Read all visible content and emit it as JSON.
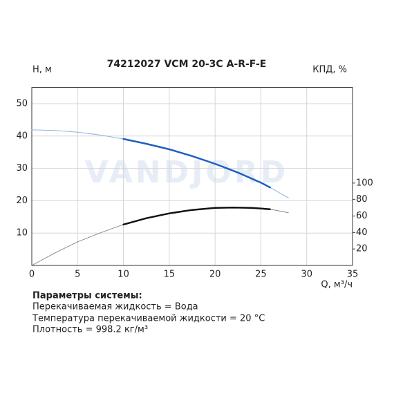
{
  "chart_data": {
    "type": "line",
    "title": "74212027 VCM 20-3C A-R-F-E",
    "y_label": "Н, м",
    "y2_label": "КПД, %",
    "x_label": "Q, м³/ч",
    "watermark": "VANDJORD",
    "xlim": [
      0,
      35
    ],
    "xticks": [
      0,
      5,
      10,
      15,
      20,
      25,
      30,
      35
    ],
    "ylim": [
      0,
      55
    ],
    "yticks": [
      10,
      20,
      30,
      40,
      50
    ],
    "y2lim": [
      0,
      216
    ],
    "y2ticks": [
      20,
      40,
      60,
      80,
      100
    ],
    "grid": true,
    "series": [
      {
        "color": "#8fb3dd",
        "line_width": 1,
        "x": [
          0,
          2.5,
          5,
          7.5,
          10,
          12.5,
          15,
          17.5,
          20,
          22.5,
          25,
          26,
          28
        ],
        "values": [
          41.9,
          41.7,
          41.2,
          40.3,
          39.1,
          37.6,
          35.9,
          33.8,
          31.4,
          28.7,
          25.6,
          24.1,
          20.9
        ]
      },
      {
        "color": "#1f5fbf",
        "line_width": 2.5,
        "x": [
          10,
          12.5,
          15,
          17.5,
          20,
          22.5,
          25,
          26
        ],
        "values": [
          39.1,
          37.6,
          35.9,
          33.8,
          31.4,
          28.7,
          25.6,
          24.1
        ]
      },
      {
        "color": "#777777",
        "line_width": 0.8,
        "axis": "y2",
        "x": [
          0,
          2.5,
          5,
          7.5,
          10,
          12.5,
          15,
          17.5,
          20,
          22,
          24,
          26,
          28
        ],
        "values": [
          0,
          15,
          28.6,
          39.6,
          49.7,
          57.3,
          63.2,
          67.4,
          69.9,
          70.3,
          69.9,
          68.2,
          64
        ]
      },
      {
        "color": "#111111",
        "line_width": 2.5,
        "axis": "y2",
        "x": [
          10,
          12.5,
          15,
          17.5,
          20,
          22,
          24,
          26
        ],
        "values": [
          49.7,
          57.3,
          63.2,
          67.4,
          69.9,
          70.3,
          69.9,
          68.2
        ]
      }
    ]
  },
  "parameters": {
    "title": "Параметры системы:",
    "lines": [
      "Перекачиваемая жидкость = Вода",
      "Температура перекачиваемой жидкости = 20 °C",
      "Плотность = 998.2 кг/м³"
    ]
  }
}
